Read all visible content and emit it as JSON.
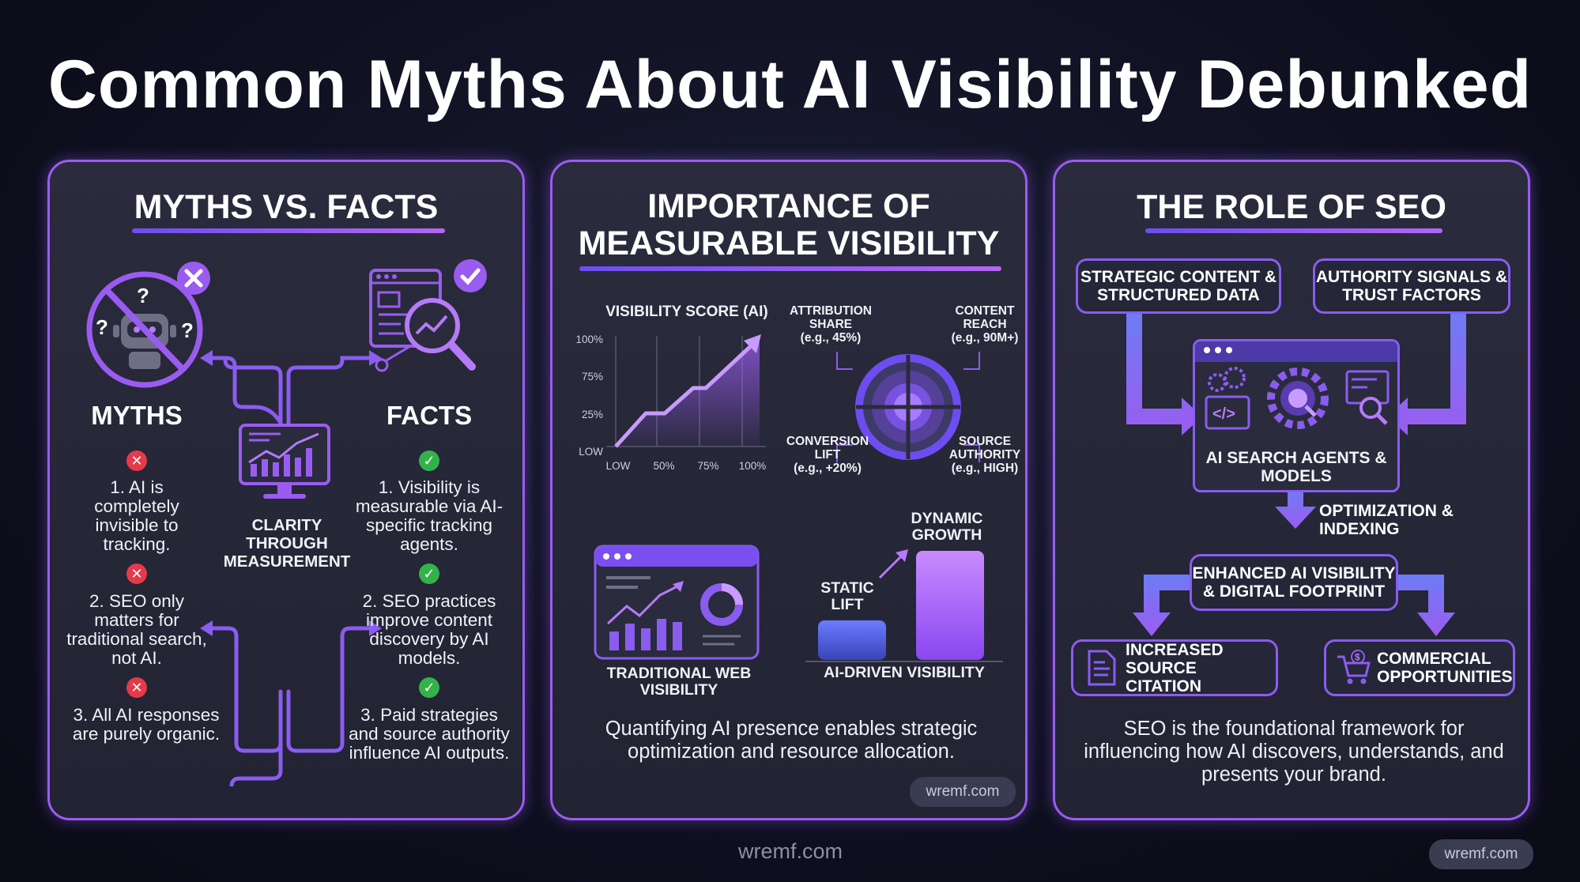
{
  "title": "Common Myths About AI Visibility Debunked",
  "panel1": {
    "title": "MYTHS VS. FACTS",
    "myths_heading": "MYTHS",
    "facts_heading": "FACTS",
    "center_label": "CLARITY THROUGH MEASUREMENT",
    "myths": [
      "1. AI is completely invisible to tracking.",
      "2. SEO only matters for traditional search, not AI.",
      "3. All AI responses are purely organic."
    ],
    "facts": [
      "1. Visibility is measurable via AI-specific tracking agents.",
      "2. SEO practices improve content discovery by AI models.",
      "3. Paid strategies and source authority influence AI outputs."
    ],
    "icons": [
      "crossed-robot-icon",
      "x-badge-icon",
      "analytics-magnifier-icon",
      "check-badge-icon",
      "monitor-chart-icon"
    ]
  },
  "panel2": {
    "title_line1": "IMPORTANCE OF",
    "title_line2": "MEASURABLE VISIBILITY",
    "chart": {
      "title": "VISIBILITY SCORE (AI)",
      "y_ticks": [
        "100%",
        "75%",
        "25%",
        "LOW"
      ],
      "x_ticks": [
        "LOW",
        "50%",
        "75%",
        "100%"
      ]
    },
    "radial": {
      "top_left": [
        "ATTRIBUTION",
        "SHARE",
        "(e.g., 45%)"
      ],
      "top_right": [
        "CONTENT",
        "REACH",
        "(e.g., 90M+)"
      ],
      "bottom_left": [
        "CONVERSION",
        "LIFT",
        "(e.g., +20%)"
      ],
      "bottom_right": [
        "SOURCE",
        "AUTHORITY",
        "(e.g., HIGH)"
      ]
    },
    "traditional_label": "TRADITIONAL WEB VISIBILITY",
    "static_label": "STATIC LIFT",
    "dynamic_label": "DYNAMIC GROWTH",
    "ai_label": "AI-DRIVEN VISIBILITY",
    "caption": "Quantifying AI presence enables strategic optimization and resource allocation.",
    "watermark": "wremf.com"
  },
  "panel3": {
    "title": "THE ROLE OF SEO",
    "box_left": "STRATEGIC CONTENT & STRUCTURED DATA",
    "box_right": "AUTHORITY SIGNALS & TRUST FACTORS",
    "center_box": "AI SEARCH AGENTS & MODELS",
    "optimization": "OPTIMIZATION & INDEXING",
    "enhanced": "ENHANCED AI VISIBILITY & DIGITAL FOOTPRINT",
    "increased": "INCREASED SOURCE CITATION",
    "commercial": "COMMERCIAL OPPORTUNITIES",
    "caption": "SEO is the foundational framework for influencing how AI discovers, understands, and presents your brand."
  },
  "footer": {
    "center": "wremf.com",
    "right": "wremf.com"
  },
  "colors": {
    "accent": "#9a5cf0",
    "accent_light": "#b57af7",
    "cross": "#e43a4a",
    "check": "#33b24a",
    "background": "#0f1020"
  }
}
